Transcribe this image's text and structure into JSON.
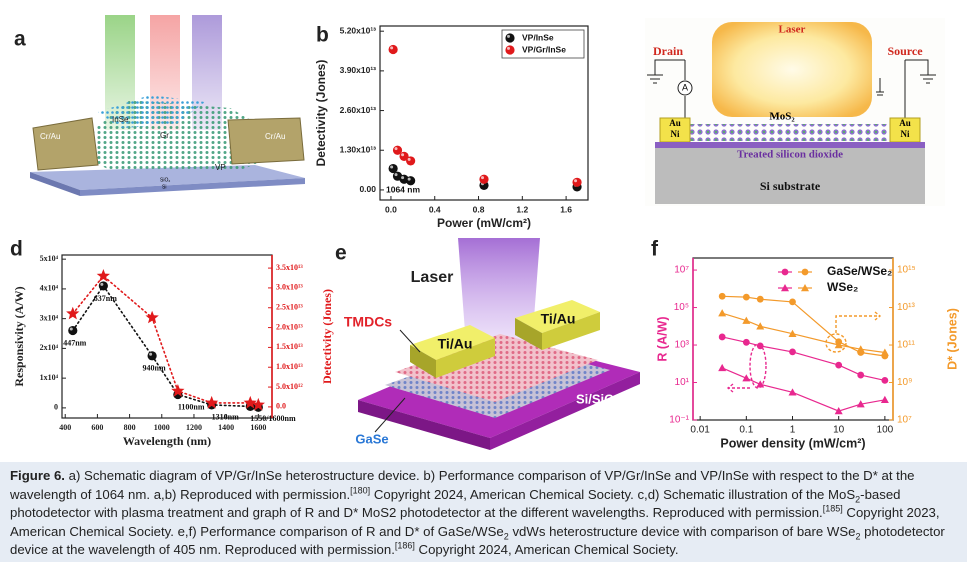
{
  "figure": {
    "panel_labels": [
      "a",
      "b",
      "c",
      "d",
      "e",
      "f"
    ],
    "panel_a": {
      "texts": [
        "InSe",
        "Cr/Au",
        "Gr",
        "Cr/Au",
        "VP",
        "SiO₂",
        "Si"
      ]
    },
    "panel_c": {
      "laser": "Laser",
      "drain": "Drain",
      "source": "Source",
      "meter": "A",
      "channel": "MoS₂",
      "electrode_left": [
        "Au",
        "Ni"
      ],
      "electrode_right": [
        "Au",
        "Ni"
      ],
      "dielectric": "Treated silicon dioxide",
      "substrate": "Si substrate"
    },
    "panel_e": {
      "laser": "Laser",
      "tmdcs": "TMDCs",
      "electrode_left": "Ti/Au",
      "electrode_right": "Ti/Au",
      "substrate": "Si/SiO₂",
      "bottom": "GaSe"
    }
  },
  "chart_data": [
    {
      "type": "scatter",
      "x_label": "Power (mW/cm²)",
      "y_label": "Detectivity (Jones)",
      "annotation": "1064 nm",
      "x": [
        0.02,
        0.06,
        0.12,
        0.18,
        0.85,
        1.7
      ],
      "series": [
        {
          "name": "VP/InSe",
          "color": "#111111",
          "marker": "sphere",
          "values": [
            7000000000000.0,
            4500000000000.0,
            3500000000000.0,
            3000000000000.0,
            1500000000000.0,
            1000000000000.0
          ]
        },
        {
          "name": "VP/Gr/InSe",
          "color": "#e0191b",
          "marker": "sphere",
          "values": [
            46000000000000.0,
            13000000000000.0,
            11000000000000.0,
            9500000000000.0,
            3500000000000.0,
            2500000000000.0
          ]
        }
      ],
      "xlim": [
        -0.1,
        1.8
      ],
      "xticks": [
        {
          "value": 0,
          "label": "0.0"
        },
        0.4,
        0.8,
        1.2,
        1.6
      ],
      "ylim": [
        -3300000000000.0,
        53700000000000.0
      ],
      "yticks": [
        {
          "value": 0,
          "label": "0.00"
        },
        {
          "value": 13000000000000.0,
          "label": "1.30x10¹³"
        },
        {
          "value": 26000000000000.0,
          "label": "2.60x10¹³"
        },
        {
          "value": 39000000000000.0,
          "label": "3.90x10¹³"
        },
        {
          "value": 52000000000000.0,
          "label": "5.20x10¹³"
        }
      ],
      "legend": "upper right"
    },
    {
      "type": "scatter",
      "x_label": "Wavelength (nm)",
      "y_label": "Responsivity (A/W)",
      "y2_label": "Detectivity (Jones)",
      "x": [
        447,
        637,
        940,
        1100,
        1310,
        1550,
        1600
      ],
      "series": [
        {
          "color": "#111111",
          "marker": "sphere",
          "line_style": "dotted",
          "values": [
            26000,
            41000,
            17500,
            4500,
            1000,
            500,
            200
          ]
        },
        {
          "color": "#e0191b",
          "marker": "star",
          "line_style": "dotted",
          "axis": "y2",
          "values": [
            23500000000000.0,
            33000000000000.0,
            22500000000000.0,
            4000000000000.0,
            1000000000000.0,
            1000000000000.0,
            500000000000.0
          ]
        }
      ],
      "point_labels": [
        "447nm",
        "637nm",
        "940nm",
        "1100nm",
        "1310nm",
        "1550/1600nm"
      ],
      "xlim": [
        380,
        1685
      ],
      "xticks": [
        400,
        600,
        800,
        1000,
        1200,
        1400,
        1600
      ],
      "ylim": [
        -3400,
        51400
      ],
      "yticks": [
        0,
        {
          "value": 10000,
          "label": "1x10⁴"
        },
        {
          "value": 20000,
          "label": "2x10⁴"
        },
        {
          "value": 30000,
          "label": "3x10⁴"
        },
        {
          "value": 40000,
          "label": "4x10⁴"
        },
        {
          "value": 50000,
          "label": "5x10⁴"
        }
      ],
      "y2lim": [
        -2800000000000.0,
        38300000000000.0
      ],
      "y2ticks": [
        {
          "value": 0,
          "label": "0.0"
        },
        {
          "value": 5000000000000.0,
          "label": "5.0x10¹²"
        },
        {
          "value": 10000000000000.0,
          "label": "1.0x10¹³"
        },
        {
          "value": 15000000000000.0,
          "label": "1.5x10¹³"
        },
        {
          "value": 20000000000000.0,
          "label": "2.0x10¹³"
        },
        {
          "value": 25000000000000.0,
          "label": "2.5x10¹³"
        },
        {
          "value": 30000000000000.0,
          "label": "3.0x10¹³"
        },
        {
          "value": 35000000000000.0,
          "label": "3.5x10¹³"
        }
      ],
      "y2color": "#e0191b"
    },
    {
      "type": "line",
      "x_label": "Power density (mW/cm²)",
      "y_label": "R (A/W)",
      "y2_label": "D* (Jones)",
      "xscale": "log",
      "yscale": "log",
      "y2scale": "log",
      "x": [
        0.03,
        0.1,
        0.2,
        1,
        10,
        30,
        100
      ],
      "series": [
        {
          "name": "GaSe/WSe₂",
          "color": "#e8288f",
          "marker": "circle",
          "values": [
            2700,
            1400,
            900,
            430,
            85,
            25,
            13
          ]
        },
        {
          "name": "WSe₂",
          "color": "#e8288f",
          "marker": "triangle",
          "values": [
            60,
            17,
            8,
            3,
            0.3,
            0.7,
            1.2
          ]
        },
        {
          "name": "GaSe/WSe₂",
          "color": "#f39a2b",
          "marker": "circle",
          "axis": "y2",
          "values": [
            40000000000000.0,
            36000000000000.0,
            28000000000000.0,
            20000000000000.0,
            150000000000.0,
            40000000000.0,
            26000000000.0
          ]
        },
        {
          "name": "WSe₂",
          "color": "#f39a2b",
          "marker": "triangle",
          "axis": "y2",
          "values": [
            5000000000000.0,
            2000000000000.0,
            1000000000000.0,
            400000000000.0,
            100000000000.0,
            60000000000.0,
            40000000000.0
          ]
        }
      ],
      "xlim": [
        0.007,
        150
      ],
      "xticks": [
        0.01,
        0.1,
        1,
        10,
        100
      ],
      "ylim": [
        0.1,
        44000000.0
      ],
      "yticks": [
        {
          "value": 0.1,
          "label": "10⁻¹"
        },
        {
          "value": 10,
          "label": "10¹"
        },
        {
          "value": 1000,
          "label": "10³"
        },
        {
          "value": 100000,
          "label": "10⁵"
        },
        {
          "value": 10000000,
          "label": "10⁷"
        }
      ],
      "y2lim": [
        10000000.0,
        4400000000000000.0
      ],
      "y2ticks": [
        {
          "value": 10000000.0,
          "label": "10⁷"
        },
        {
          "value": 1000000000.0,
          "label": "10⁹"
        },
        {
          "value": 100000000000.0,
          "label": "10¹¹"
        },
        {
          "value": 10000000000000.0,
          "label": "10¹³"
        },
        {
          "value": 1000000000000000.0,
          "label": "10¹⁵"
        }
      ],
      "ycolor": "#e8288f",
      "y2color": "#f39a2b",
      "legend": "upper right"
    }
  ],
  "caption": {
    "label": "Figure 6.",
    "segments": [
      " a) Schematic diagram of VP/Gr/InSe heterostructure device. b) Performance comparison of VP/Gr/InSe and VP/InSe with respect to the D* at the wavelength of 1064 nm. a,b) Reproduced with permission.",
      "[180]",
      " Copyright 2024, American Chemical Society. c,d) Schematic illustration of the MoS",
      "2",
      "-based photodetector with plasma treatment and graph of R and D* MoS2 photodetector at the different wavelengths. Reproduced with permission.",
      "[185]",
      " Copyright 2023, American Chemical Society. e,f) Performance comparison of R and D* of GaSe/WSe",
      "2",
      " vdWs heterostructure device with comparison of bare WSe",
      "2",
      " photodetector device at the wavelength of 405 nm. Reproduced with permission.",
      "[186]",
      " Copyright 2024, American Chemical Society."
    ]
  }
}
